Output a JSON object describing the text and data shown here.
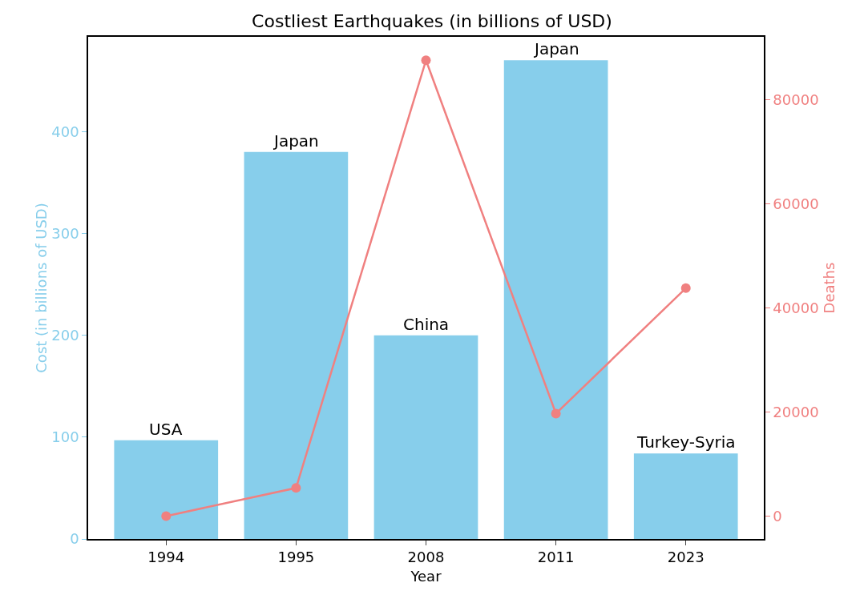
{
  "chart_data": {
    "type": "bar",
    "title": "Costliest Earthquakes (in billions of USD)",
    "xlabel": "Year",
    "ylabel": "Cost (in billions of USD)",
    "y2label": "Deaths",
    "categories": [
      "1994",
      "1995",
      "2008",
      "2011",
      "2023"
    ],
    "series": [
      {
        "color": "#87ceeb",
        "values": [
          97,
          380,
          200,
          470,
          84
        ]
      },
      {
        "type": "line",
        "axis": "y2",
        "color": "#f08080",
        "values": [
          0,
          5400,
          87600,
          19700,
          43800
        ]
      }
    ],
    "ylim": [
      0,
      493
    ],
    "yticks": [
      0,
      100,
      200,
      300,
      400
    ],
    "y2lim": [
      -4400,
      92100
    ],
    "y2ticks": [
      0,
      20000,
      40000,
      60000,
      80000
    ],
    "marker": "circle",
    "line_style": "solid",
    "grid": false,
    "legend": false,
    "annotations": [
      {
        "text": "USA",
        "x": "1994",
        "y": 97
      },
      {
        "text": "Japan",
        "x": "1995",
        "y": 380
      },
      {
        "text": "China",
        "x": "2008",
        "y": 200
      },
      {
        "text": "Japan",
        "x": "2011",
        "y": 470
      },
      {
        "text": "Turkey-Syria",
        "x": "2023",
        "y": 84
      }
    ]
  }
}
